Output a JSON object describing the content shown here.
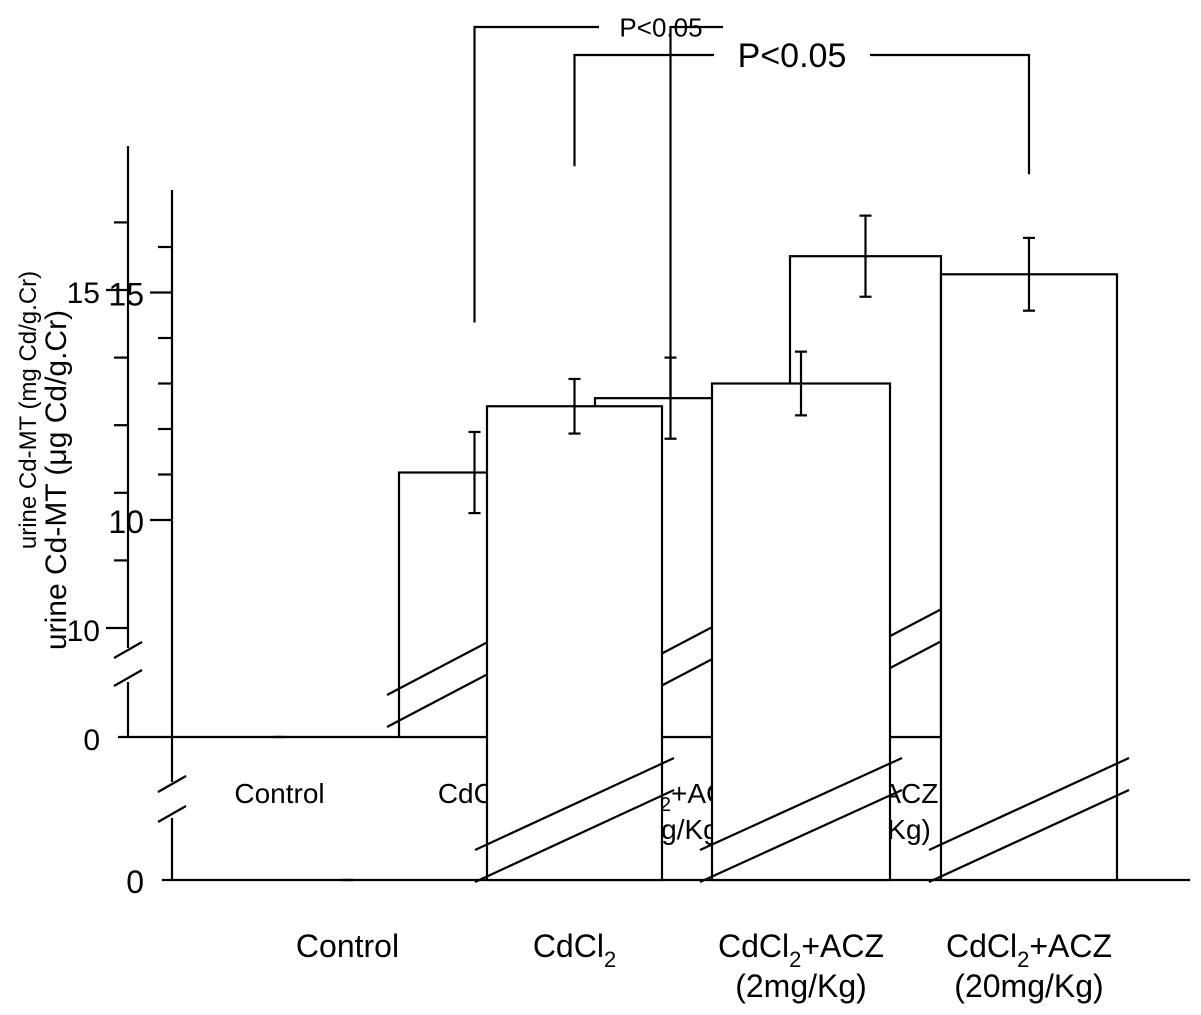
{
  "chart_data": [
    {
      "type": "bar",
      "layer": "front",
      "categories": [
        "Control",
        "CdCl2",
        "CdCl2+ACZ (2mg/Kg)",
        "CdCl2+ACZ (20mg/Kg)"
      ],
      "category_labels": [
        {
          "base": "Control",
          "sub": "",
          "suffix": "",
          "line2": ""
        },
        {
          "base": "CdCl",
          "sub": "2",
          "suffix": "",
          "line2": ""
        },
        {
          "base": "CdCl",
          "sub": "2",
          "suffix": "+ACZ",
          "line2": "(2mg/Kg)"
        },
        {
          "base": "CdCl",
          "sub": "2",
          "suffix": "+ACZ",
          "line2": "(20mg/Kg)"
        }
      ],
      "values": [
        0.4,
        12.5,
        13.0,
        15.4
      ],
      "errors": [
        0.1,
        0.6,
        0.7,
        0.8
      ],
      "ylabel": "urine Cd-MT (μg Cd/g.Cr)",
      "yticks": [
        "0",
        "10",
        "15"
      ],
      "axis_break": true,
      "brackets": [
        {
          "label": "P<0.05",
          "from": "CdCl2",
          "to": "CdCl2+ACZ (20mg/Kg)"
        }
      ]
    },
    {
      "type": "bar",
      "layer": "back",
      "categories": [
        "Control",
        "CdCl2",
        "CdCl2+ACZ (2mg/Kg)",
        "CdCl2+ACZ (20mg/Kg)"
      ],
      "category_labels": [
        {
          "base": "Control",
          "sub": "",
          "suffix": "",
          "line2": ""
        },
        {
          "base": "CdCl",
          "sub": "2",
          "suffix": "",
          "line2": ""
        },
        {
          "base": "CdCl",
          "sub": "2",
          "suffix": "+ACZ",
          "line2": "(2mg/Kg)"
        },
        {
          "base": "CdCl",
          "sub": "2",
          "suffix": "+ACZ",
          "line2": "(20mg/Kg)"
        }
      ],
      "values": [
        0.4,
        12.3,
        13.4,
        15.5
      ],
      "errors": [
        0.08,
        0.6,
        0.6,
        0.6
      ],
      "ylabel": "urine Cd-MT (mg Cd/g.Cr)",
      "yticks": [
        "0",
        "10",
        "15"
      ],
      "axis_break": true,
      "brackets": [
        {
          "label": "P<0.05",
          "from": "CdCl2",
          "to": "CdCl2+ACZ (2mg/Kg)"
        }
      ]
    }
  ]
}
